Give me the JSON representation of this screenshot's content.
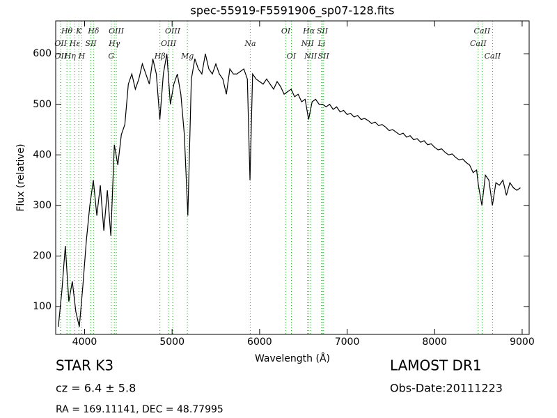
{
  "chart_data": {
    "type": "line",
    "title": "spec-55919-F5591906_sp07-128.fits",
    "x_label": "Wavelength (Å)",
    "y_label": "Flux (relative)",
    "xlim": [
      3670,
      9080
    ],
    "ylim": [
      45,
      665
    ],
    "xticks": [
      4000,
      5000,
      6000,
      7000,
      8000,
      9000
    ],
    "yticks": [
      100,
      200,
      300,
      400,
      500,
      600
    ],
    "x": [
      3700,
      3740,
      3780,
      3820,
      3860,
      3900,
      3940,
      3980,
      4020,
      4060,
      4100,
      4140,
      4180,
      4220,
      4260,
      4300,
      4340,
      4380,
      4420,
      4460,
      4500,
      4540,
      4580,
      4620,
      4660,
      4700,
      4740,
      4780,
      4820,
      4860,
      4900,
      4940,
      4980,
      5020,
      5060,
      5100,
      5140,
      5180,
      5220,
      5260,
      5300,
      5340,
      5380,
      5420,
      5460,
      5500,
      5540,
      5580,
      5620,
      5660,
      5700,
      5740,
      5780,
      5820,
      5860,
      5890,
      5920,
      5960,
      6000,
      6040,
      6080,
      6120,
      6160,
      6200,
      6240,
      6280,
      6320,
      6360,
      6400,
      6440,
      6480,
      6520,
      6560,
      6600,
      6640,
      6680,
      6720,
      6760,
      6800,
      6840,
      6880,
      6920,
      6960,
      7000,
      7040,
      7080,
      7120,
      7160,
      7200,
      7240,
      7280,
      7320,
      7360,
      7400,
      7440,
      7480,
      7520,
      7560,
      7600,
      7640,
      7680,
      7720,
      7760,
      7800,
      7840,
      7880,
      7920,
      7960,
      8000,
      8040,
      8080,
      8120,
      8160,
      8200,
      8240,
      8280,
      8320,
      8360,
      8400,
      8440,
      8480,
      8500,
      8540,
      8580,
      8620,
      8660,
      8700,
      8740,
      8780,
      8820,
      8860,
      8900,
      8940,
      8980
    ],
    "series": [
      {
        "name": "flux",
        "color": "#000000",
        "values": [
          60,
          130,
          220,
          110,
          150,
          90,
          60,
          140,
          230,
          300,
          350,
          280,
          340,
          250,
          330,
          240,
          420,
          380,
          440,
          460,
          540,
          560,
          530,
          550,
          580,
          560,
          540,
          590,
          560,
          470,
          560,
          600,
          500,
          540,
          560,
          520,
          440,
          280,
          550,
          590,
          570,
          560,
          600,
          570,
          560,
          580,
          560,
          550,
          520,
          570,
          560,
          560,
          565,
          570,
          550,
          350,
          560,
          550,
          545,
          540,
          550,
          540,
          530,
          545,
          535,
          520,
          525,
          530,
          515,
          520,
          505,
          510,
          470,
          505,
          510,
          500,
          500,
          495,
          500,
          490,
          495,
          485,
          488,
          480,
          482,
          475,
          478,
          470,
          472,
          468,
          462,
          465,
          458,
          460,
          455,
          448,
          450,
          445,
          440,
          443,
          435,
          438,
          430,
          432,
          425,
          428,
          420,
          422,
          415,
          410,
          412,
          405,
          400,
          402,
          395,
          390,
          392,
          385,
          380,
          365,
          370,
          340,
          300,
          360,
          350,
          300,
          345,
          340,
          350,
          320,
          345,
          335,
          330,
          335
        ]
      }
    ],
    "line_color": "#2ca02c",
    "spectral_lines": [
      [
        {
          "label": "Hθ",
          "x": 3798
        },
        {
          "label": "K",
          "x": 3934
        },
        {
          "label": "Hδ",
          "x": 4102
        },
        {
          "label": "OIII",
          "x": 4363
        },
        {
          "label": "OIII",
          "x": 5007
        },
        {
          "label": "OI",
          "x": 6300
        },
        {
          "label": "Hα",
          "x": 6563
        },
        {
          "label": "SII",
          "x": 6717
        },
        {
          "label": "CaII",
          "x": 8542
        }
      ],
      [
        {
          "label": "OII",
          "x": 3727
        },
        {
          "label": "Hε",
          "x": 3889
        },
        {
          "label": "SII",
          "x": 4072
        },
        {
          "label": "Hγ",
          "x": 4340
        },
        {
          "label": "OIII",
          "x": 4959
        },
        {
          "label": "Na",
          "x": 5893
        },
        {
          "label": "NII",
          "x": 6548
        },
        {
          "label": "Li",
          "x": 6708
        },
        {
          "label": "CaII",
          "x": 8498
        }
      ],
      [
        {
          "label": "OII",
          "x": 3729
        },
        {
          "label": "Hη",
          "x": 3835
        },
        {
          "label": "H",
          "x": 3968
        },
        {
          "label": "G",
          "x": 4305
        },
        {
          "label": "Hβ",
          "x": 4861
        },
        {
          "label": "Mg",
          "x": 5175
        },
        {
          "label": "OI",
          "x": 6363
        },
        {
          "label": "NII",
          "x": 6583
        },
        {
          "label": "SII",
          "x": 6731
        },
        {
          "label": "CaII",
          "x": 8662
        }
      ]
    ],
    "info": {
      "class": "STAR   K3",
      "cz": "cz = 6.4 ± 5.8",
      "coords": "RA = 169.11141, DEC = 48.77995",
      "survey": "LAMOST DR1",
      "date": "Obs-Date:20111223"
    }
  }
}
